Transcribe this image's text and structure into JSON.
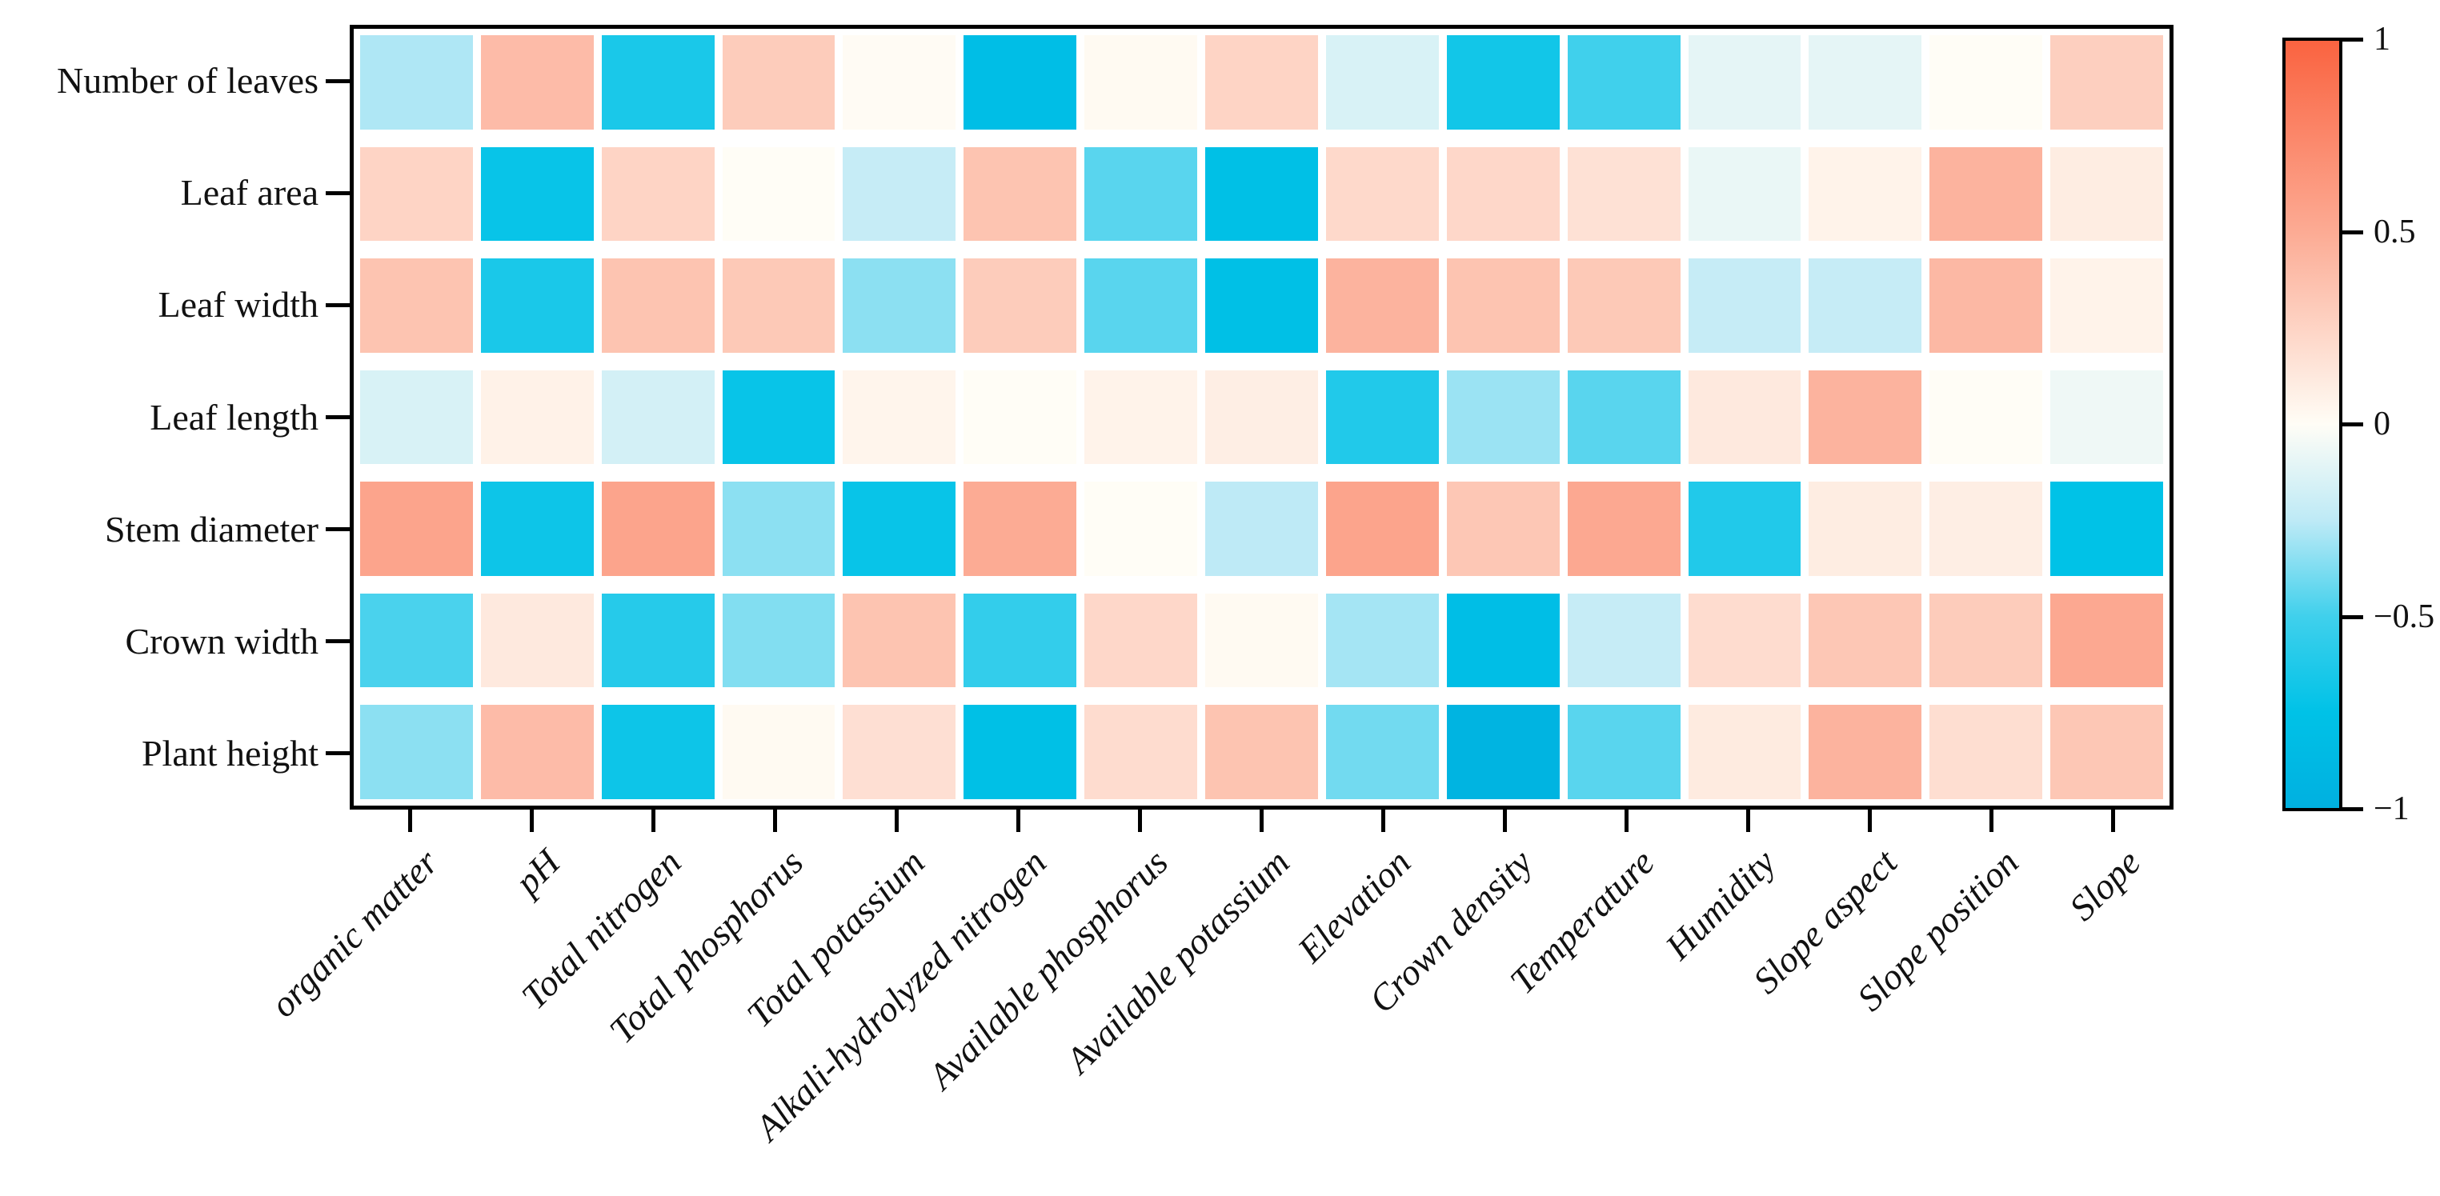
{
  "chart_data": {
    "type": "heatmap",
    "title": "",
    "rows": [
      "Number of leaves",
      "Leaf area",
      "Leaf width",
      "Leaf length",
      "Stem diameter",
      "Crown width",
      "Plant height"
    ],
    "columns": [
      "organic matter",
      "pH",
      "Total nitrogen",
      "Total phosphorus",
      "Total potassium",
      "Alkali-hydrolyzed nitrogen",
      "Available phosphorus",
      "Available potassium",
      "Elevation",
      "Crown density",
      "Temperature",
      "Humidity",
      "Slope aspect",
      "Slope position",
      "Slope"
    ],
    "values": [
      [
        -0.28,
        0.4,
        -0.65,
        0.3,
        0.01,
        -0.8,
        0.02,
        0.25,
        -0.15,
        -0.68,
        -0.5,
        -0.1,
        -0.1,
        0.0,
        0.28
      ],
      [
        0.25,
        -0.72,
        0.25,
        0.0,
        -0.22,
        0.35,
        -0.45,
        -0.78,
        0.22,
        0.23,
        0.17,
        -0.08,
        0.06,
        0.45,
        0.1
      ],
      [
        0.35,
        -0.65,
        0.35,
        0.32,
        -0.35,
        0.3,
        -0.45,
        -0.78,
        0.45,
        0.35,
        0.32,
        -0.22,
        -0.22,
        0.42,
        0.06
      ],
      [
        -0.15,
        0.07,
        -0.17,
        -0.72,
        0.05,
        0.0,
        0.06,
        0.09,
        -0.62,
        -0.32,
        -0.45,
        0.12,
        0.45,
        0.0,
        -0.06
      ],
      [
        0.55,
        -0.7,
        0.55,
        -0.35,
        -0.72,
        0.5,
        0.0,
        -0.25,
        0.55,
        0.33,
        0.52,
        -0.62,
        0.1,
        0.09,
        -0.75
      ],
      [
        -0.48,
        0.12,
        -0.6,
        -0.37,
        0.35,
        -0.55,
        0.23,
        0.02,
        -0.3,
        -0.8,
        -0.22,
        0.2,
        0.33,
        0.3,
        0.52
      ],
      [
        -0.35,
        0.4,
        -0.7,
        0.02,
        0.18,
        -0.78,
        0.2,
        0.35,
        -0.4,
        -0.95,
        -0.45,
        0.11,
        0.45,
        0.19,
        0.33
      ]
    ],
    "value_range": [
      -1,
      1
    ],
    "grid": false,
    "legend_position": "right",
    "colorbar": {
      "tick_labels": [
        "1",
        "0.5",
        "0",
        "−0.5",
        "−1"
      ],
      "tick_values": [
        1,
        0.5,
        0,
        -0.5,
        -1
      ]
    },
    "colormap": {
      "anchors": [
        [
          1.0,
          "#fa6340"
        ],
        [
          0.5,
          "#fcab94"
        ],
        [
          0.0,
          "#fffdf6"
        ],
        [
          -0.25,
          "#beeaf6"
        ],
        [
          -0.5,
          "#40d0ec"
        ],
        [
          -0.75,
          "#00c2e7"
        ],
        [
          -1.0,
          "#00b0e0"
        ]
      ],
      "positive_accent": "#fa6340",
      "negative_accent": "#00b0e0",
      "midpoint": "#fffdf6"
    }
  }
}
